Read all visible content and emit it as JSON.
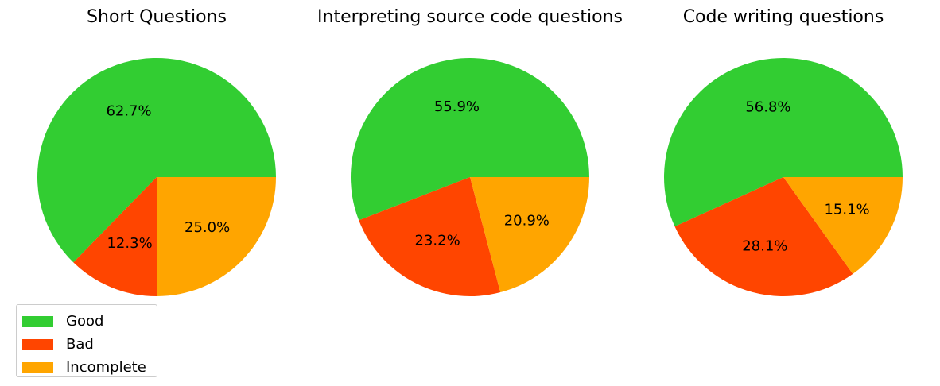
{
  "chart_data": [
    {
      "type": "pie",
      "title": "Short Questions",
      "slices": [
        {
          "label": "Good",
          "value": 62.7,
          "pct_label": "62.7%"
        },
        {
          "label": "Bad",
          "value": 12.3,
          "pct_label": "12.3%"
        },
        {
          "label": "Incomplete",
          "value": 25.0,
          "pct_label": "25.0%"
        }
      ]
    },
    {
      "type": "pie",
      "title": "Interpreting source code questions",
      "slices": [
        {
          "label": "Good",
          "value": 55.9,
          "pct_label": "55.9%"
        },
        {
          "label": "Bad",
          "value": 23.2,
          "pct_label": "23.2%"
        },
        {
          "label": "Incomplete",
          "value": 20.9,
          "pct_label": "20.9%"
        }
      ]
    },
    {
      "type": "pie",
      "title": "Code writing questions",
      "slices": [
        {
          "label": "Good",
          "value": 56.8,
          "pct_label": "56.8%"
        },
        {
          "label": "Bad",
          "value": 28.1,
          "pct_label": "28.1%"
        },
        {
          "label": "Incomplete",
          "value": 15.1,
          "pct_label": "15.1%"
        }
      ]
    }
  ],
  "legend": {
    "placement": "bottom-left",
    "items": [
      {
        "label": "Good",
        "color": "#32CD32"
      },
      {
        "label": "Bad",
        "color": "#FF4500"
      },
      {
        "label": "Incomplete",
        "color": "#FFA500"
      }
    ]
  },
  "colors": {
    "Good": "#32CD32",
    "Bad": "#FF4500",
    "Incomplete": "#FFA500"
  }
}
